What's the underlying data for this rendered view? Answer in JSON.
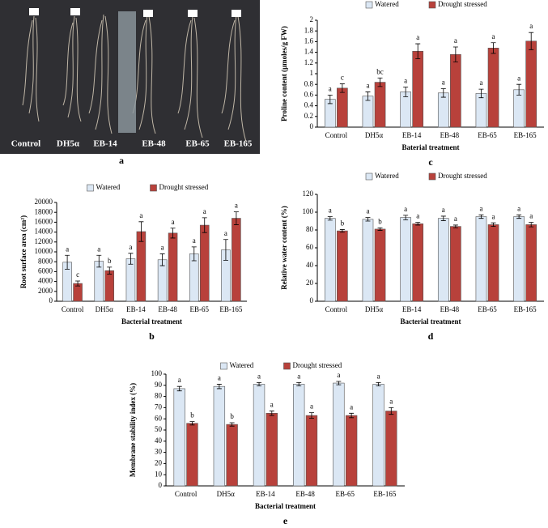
{
  "photo": {
    "labels": [
      "Control",
      "DH5α",
      "EB-14",
      "EB-48",
      "EB-65",
      "EB-165"
    ],
    "panel": "a"
  },
  "chart_data": [
    {
      "type": "bar",
      "panel": "b",
      "y_label": "Root surface area (cm²)",
      "x_label": "Bacterial treatment",
      "categories": [
        "Control",
        "DH5α",
        "EB-14",
        "EB-48",
        "EB-65",
        "EB-165"
      ],
      "ylim": [
        0,
        20000
      ],
      "yticks": [
        0,
        2000,
        4000,
        6000,
        8000,
        10000,
        12000,
        14000,
        16000,
        18000,
        20000
      ],
      "series": [
        {
          "name": "Watered",
          "color": "#dbe7f4",
          "values": [
            7900,
            8100,
            8600,
            8400,
            9600,
            10400
          ],
          "errors": [
            1400,
            1200,
            1100,
            1200,
            1400,
            2100
          ],
          "letters": [
            "a",
            "a",
            "a",
            "a",
            "a",
            "a"
          ]
        },
        {
          "name": "Drought stressed",
          "color": "#b8413b",
          "values": [
            3600,
            6200,
            14100,
            13800,
            15400,
            16800
          ],
          "errors": [
            500,
            700,
            2000,
            1000,
            1500,
            1300
          ],
          "letters": [
            "c",
            "b",
            "a",
            "a",
            "a",
            "a"
          ]
        }
      ]
    },
    {
      "type": "bar",
      "panel": "c",
      "y_label": "Proline content (µmoles/g FW)",
      "x_label": "Baterial treatment",
      "categories": [
        "Control",
        "DH5α",
        "EB-14",
        "EB-48",
        "EB-65",
        "EB-165"
      ],
      "ylim": [
        0,
        2
      ],
      "yticks": [
        0,
        0.2,
        0.4,
        0.6,
        0.8,
        1,
        1.2,
        1.4,
        1.6,
        1.8,
        2
      ],
      "series": [
        {
          "name": "Watered",
          "color": "#dbe7f4",
          "values": [
            0.52,
            0.58,
            0.66,
            0.64,
            0.63,
            0.7
          ],
          "errors": [
            0.08,
            0.08,
            0.09,
            0.08,
            0.08,
            0.1
          ],
          "letters": [
            "a",
            "a",
            "a",
            "a",
            "a",
            "a"
          ]
        },
        {
          "name": "Drought stressed",
          "color": "#b8413b",
          "values": [
            0.73,
            0.84,
            1.42,
            1.36,
            1.48,
            1.61
          ],
          "errors": [
            0.08,
            0.08,
            0.14,
            0.14,
            0.1,
            0.16
          ],
          "letters": [
            "c",
            "bc",
            "a",
            "a",
            "a",
            "a"
          ]
        }
      ]
    },
    {
      "type": "bar",
      "panel": "d",
      "y_label": "Relative water content (%)",
      "x_label": "Bacterial treatment",
      "categories": [
        "Control",
        "DH5α",
        "EB-14",
        "EB-48",
        "EB-65",
        "EB-165"
      ],
      "ylim": [
        0,
        120
      ],
      "yticks": [
        0,
        20,
        40,
        60,
        80,
        100,
        120
      ],
      "series": [
        {
          "name": "Watered",
          "color": "#dbe7f4",
          "values": [
            93,
            92,
            94,
            93,
            95,
            95
          ],
          "errors": [
            2,
            2,
            2.5,
            2.5,
            2,
            2
          ],
          "letters": [
            "a",
            "a",
            "a",
            "a",
            "a",
            "a"
          ]
        },
        {
          "name": "Drought stressed",
          "color": "#b8413b",
          "values": [
            79,
            81,
            87,
            84,
            86,
            86
          ],
          "errors": [
            1.5,
            1.5,
            1.5,
            1.5,
            2,
            2.5
          ],
          "letters": [
            "b",
            "b",
            "a",
            "a",
            "a",
            "a"
          ]
        }
      ]
    },
    {
      "type": "bar",
      "panel": "e",
      "y_label": "Membrane stability index (%)",
      "x_label": "Bacterial treatment",
      "categories": [
        "Control",
        "DH5α",
        "EB-14",
        "EB-48",
        "EB-65",
        "EB-165"
      ],
      "ylim": [
        0,
        100
      ],
      "yticks": [
        0,
        10,
        20,
        30,
        40,
        50,
        60,
        70,
        80,
        90,
        100
      ],
      "series": [
        {
          "name": "Watered",
          "color": "#dbe7f4",
          "values": [
            87,
            89,
            91,
            91,
            92,
            91
          ],
          "errors": [
            2,
            2,
            1.5,
            1.5,
            1.5,
            1.5
          ],
          "letters": [
            "a",
            "a",
            "a",
            "a",
            "a",
            "a"
          ]
        },
        {
          "name": "Drought stressed",
          "color": "#b8413b",
          "values": [
            56,
            55,
            65,
            63,
            63,
            67
          ],
          "errors": [
            1.5,
            1.5,
            2,
            2.5,
            2,
            3
          ],
          "letters": [
            "b",
            "b",
            "a",
            "a",
            "a",
            "a"
          ]
        }
      ]
    }
  ]
}
